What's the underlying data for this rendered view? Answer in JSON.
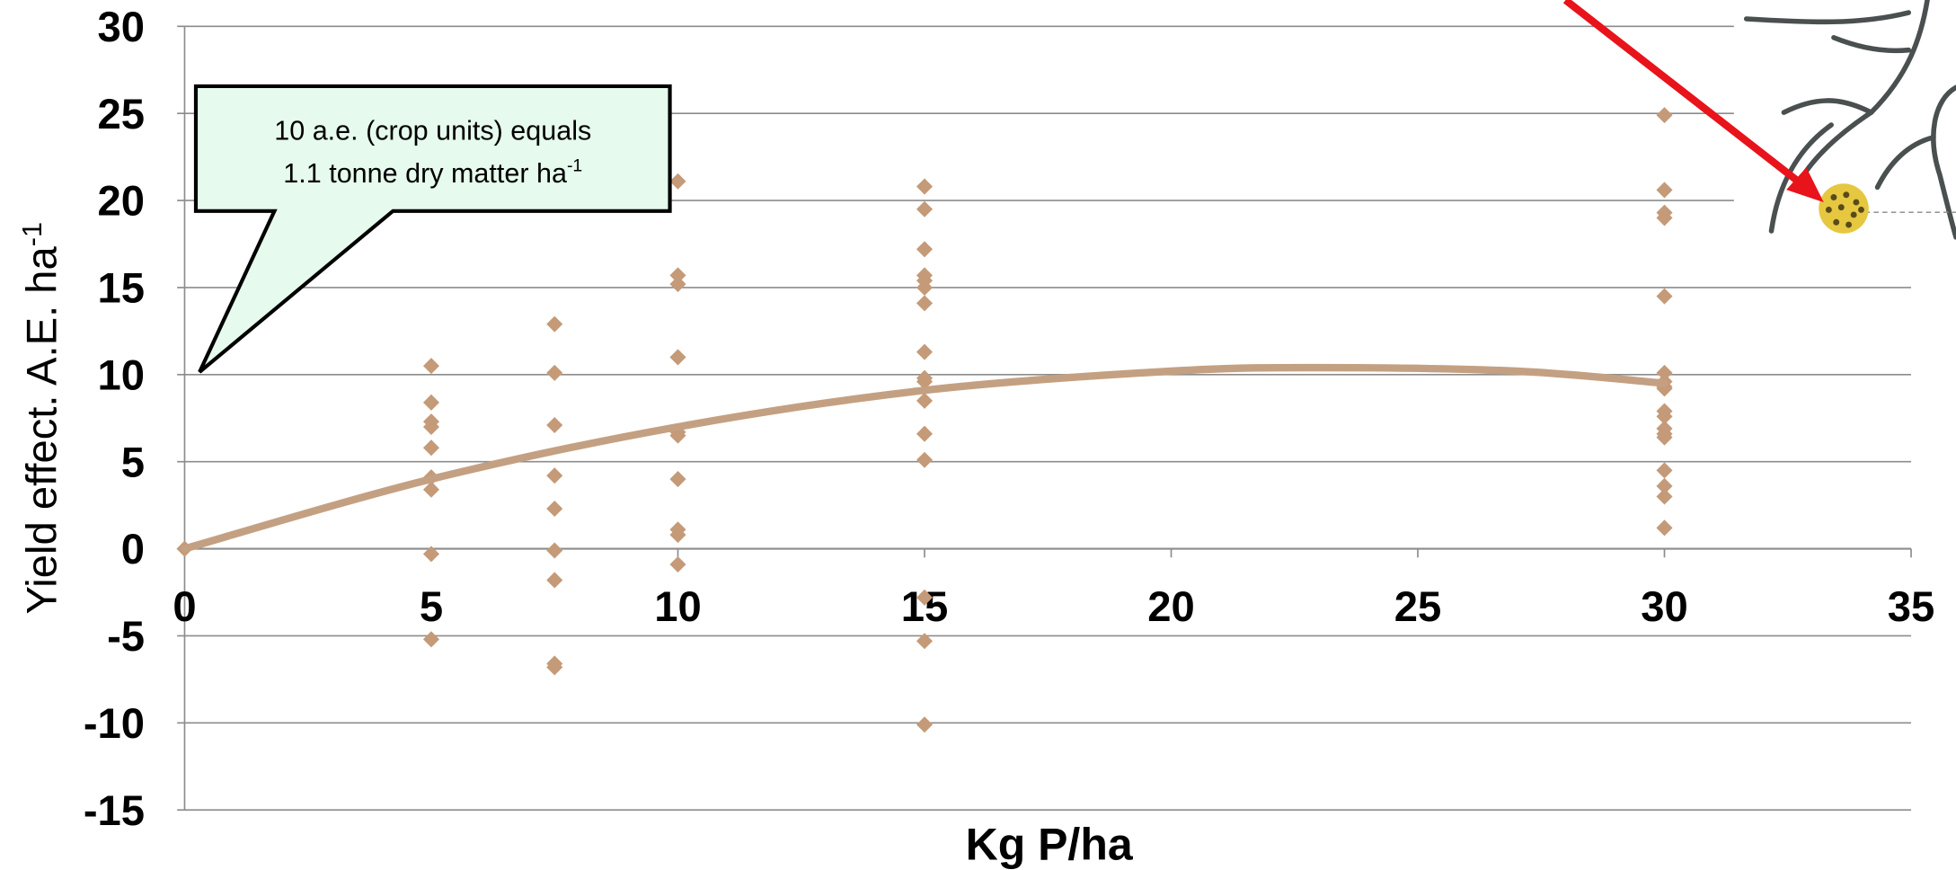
{
  "chart_data": {
    "type": "scatter",
    "x_label": "Kg P/ha",
    "y_label": {
      "text": "Yield effect. A.E. ha",
      "sup": "-1"
    },
    "annotation": {
      "line1": "10 a.e. (crop units) equals",
      "line2": "1.1 tonne dry matter ha",
      "sup": "-1"
    },
    "xlim": [
      0,
      35
    ],
    "xticks": [
      0,
      5,
      10,
      15,
      20,
      25,
      30,
      35
    ],
    "ylim": [
      -15,
      30
    ],
    "yticks": [
      -15,
      -10,
      -5,
      0,
      5,
      10,
      15,
      20,
      25,
      30
    ],
    "grid": true,
    "series": [
      {
        "type": "scatter",
        "color": "#c49a78",
        "x": [
          0,
          5,
          5,
          5,
          5,
          5,
          5,
          5,
          5,
          5,
          7.5,
          7.5,
          7.5,
          7.5,
          7.5,
          7.5,
          7.5,
          7.5,
          7.5,
          10,
          10,
          10,
          10,
          10,
          10,
          10,
          10,
          10,
          10,
          15,
          15,
          15,
          15,
          15,
          15,
          15,
          15,
          15,
          15,
          15,
          15,
          15,
          15,
          15,
          15,
          30,
          30,
          30,
          30,
          30,
          30,
          30,
          30,
          30,
          30,
          30,
          30,
          30,
          30,
          30,
          30,
          30,
          30
        ],
        "values": [
          0,
          10.5,
          8.4,
          7.3,
          7.0,
          5.8,
          4.1,
          3.4,
          -0.3,
          -5.2,
          12.9,
          10.1,
          7.1,
          4.2,
          2.3,
          -0.1,
          -1.8,
          -6.6,
          -6.8,
          21.1,
          15.7,
          15.2,
          11.0,
          6.7,
          6.5,
          4.0,
          1.1,
          0.8,
          -0.9,
          20.8,
          19.5,
          17.2,
          15.7,
          15.4,
          15.0,
          14.1,
          11.3,
          9.8,
          9.6,
          8.5,
          6.6,
          5.1,
          -2.8,
          -5.3,
          -10.1,
          24.9,
          20.6,
          19.3,
          19.0,
          14.5,
          10.1,
          9.6,
          9.3,
          9.2,
          7.9,
          7.6,
          6.9,
          6.6,
          6.4,
          4.5,
          3.6,
          3.0,
          1.2
        ]
      },
      {
        "type": "line",
        "color": "#c4a082",
        "x": [
          0,
          5,
          10,
          15,
          20,
          23,
          27,
          30
        ],
        "values": [
          0,
          4.0,
          7.0,
          9.1,
          10.2,
          10.4,
          10.2,
          9.5
        ]
      }
    ]
  }
}
